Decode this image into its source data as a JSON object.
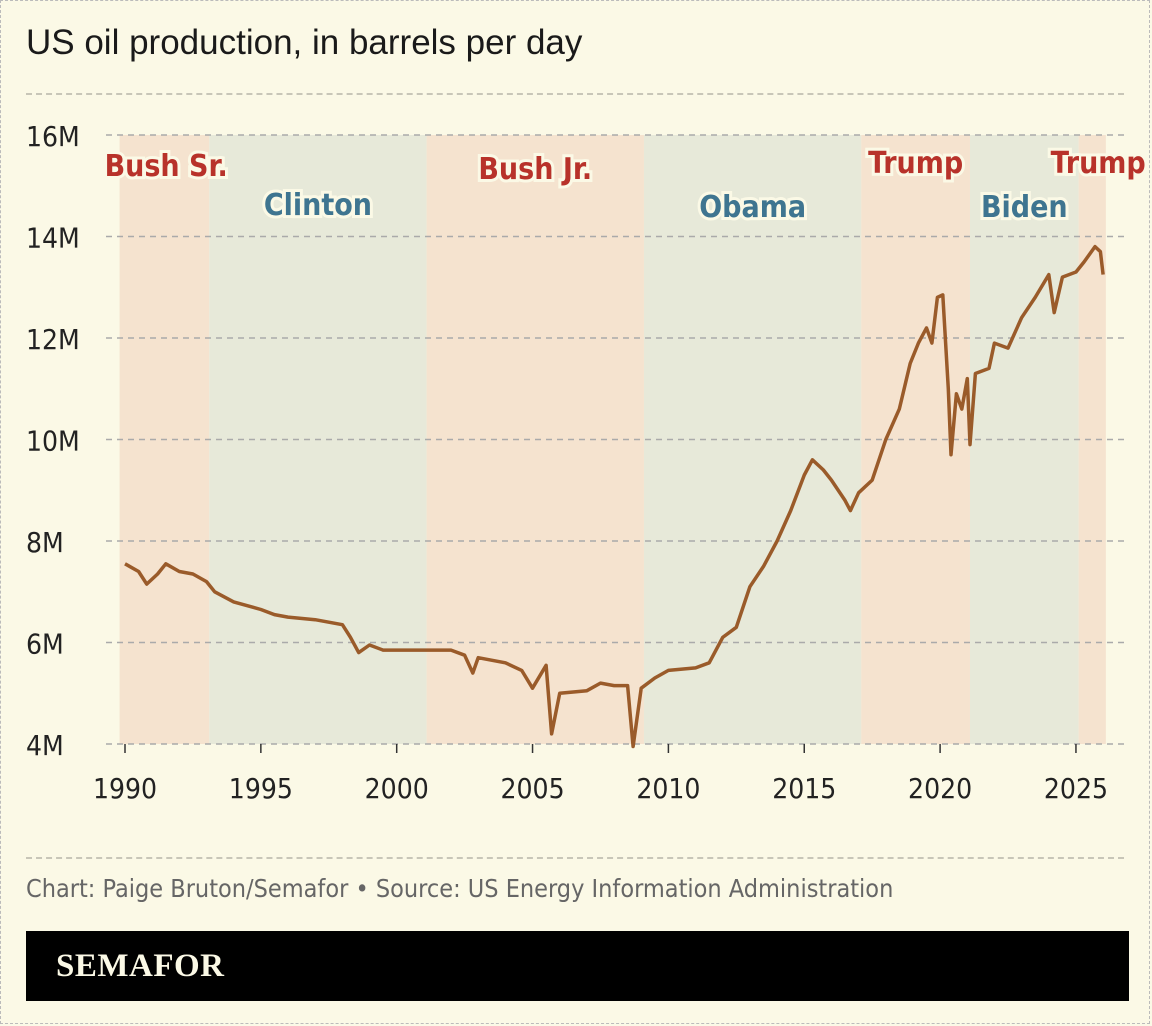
{
  "title": "US oil production, in barrels per day",
  "footer": "Chart: Paige Bruton/Semafor • Source: US Energy Information Administration",
  "logo": "SEMAFOR",
  "chart_data": {
    "type": "line",
    "title": "US oil production, in barrels per day",
    "xlabel": "",
    "ylabel": "",
    "xlim": [
      1990,
      2026
    ],
    "ylim": [
      4,
      16
    ],
    "x_ticks": [
      "1990",
      "1995",
      "2000",
      "2005",
      "2010",
      "2015",
      "2020",
      "2025"
    ],
    "y_ticks": [
      "4M",
      "6M",
      "8M",
      "10M",
      "12M",
      "14M",
      "16M"
    ],
    "grid": "horizontal dashed",
    "line_color": "#9a5b2a",
    "presidencies": [
      {
        "name": "Bush Sr.",
        "start": 1989.8,
        "end": 1993.1,
        "party": "R"
      },
      {
        "name": "Clinton",
        "start": 1993.1,
        "end": 2001.1,
        "party": "D"
      },
      {
        "name": "Bush Jr.",
        "start": 2001.1,
        "end": 2009.1,
        "party": "R"
      },
      {
        "name": "Obama",
        "start": 2009.1,
        "end": 2017.1,
        "party": "D"
      },
      {
        "name": "Trump",
        "start": 2017.1,
        "end": 2021.1,
        "party": "R"
      },
      {
        "name": "Biden",
        "start": 2021.1,
        "end": 2025.1,
        "party": "D"
      },
      {
        "name": "Trump",
        "start": 2025.1,
        "end": 2026.1,
        "party": "R"
      }
    ],
    "colors": {
      "R_band": "#f5e3cf",
      "D_band": "#e7e9d9",
      "R_text": "#b8322a",
      "D_text": "#3f7590"
    },
    "units": "million barrels per day",
    "x": [
      1990,
      1990.5,
      1990.8,
      1991.2,
      1991.5,
      1992,
      1992.5,
      1993,
      1993.3,
      1994,
      1995,
      1995.5,
      1996,
      1997,
      1998,
      1998.3,
      1998.6,
      1999,
      1999.5,
      2000,
      2000.5,
      2001,
      2002,
      2002.5,
      2002.8,
      2003,
      2004,
      2004.6,
      2005,
      2005.5,
      2005.7,
      2006,
      2007,
      2007.5,
      2008,
      2008.5,
      2008.7,
      2009,
      2009.5,
      2010,
      2011,
      2011.5,
      2012,
      2012.5,
      2013,
      2013.5,
      2014,
      2014.5,
      2015,
      2015.3,
      2015.7,
      2016,
      2016.5,
      2016.7,
      2017,
      2017.5,
      2018,
      2018.5,
      2018.9,
      2019.2,
      2019.5,
      2019.7,
      2019.9,
      2020.1,
      2020.3,
      2020.4,
      2020.6,
      2020.8,
      2021,
      2021.1,
      2021.3,
      2021.8,
      2022,
      2022.5,
      2023,
      2023.5,
      2024,
      2024.2,
      2024.5,
      2025,
      2025.3,
      2025.7,
      2025.9,
      2026
    ],
    "y": [
      7.55,
      7.4,
      7.15,
      7.35,
      7.55,
      7.4,
      7.35,
      7.2,
      7.0,
      6.8,
      6.65,
      6.55,
      6.5,
      6.45,
      6.35,
      6.1,
      5.8,
      5.95,
      5.85,
      5.85,
      5.85,
      5.85,
      5.85,
      5.75,
      5.4,
      5.7,
      5.6,
      5.45,
      5.1,
      5.55,
      4.2,
      5.0,
      5.05,
      5.2,
      5.15,
      5.15,
      3.95,
      5.1,
      5.3,
      5.45,
      5.5,
      5.6,
      6.1,
      6.3,
      7.1,
      7.5,
      8.0,
      8.6,
      9.3,
      9.6,
      9.4,
      9.2,
      8.8,
      8.6,
      8.95,
      9.2,
      10.0,
      10.6,
      11.5,
      11.9,
      12.2,
      11.9,
      12.8,
      12.85,
      11.0,
      9.7,
      10.9,
      10.6,
      11.2,
      9.9,
      11.3,
      11.4,
      11.9,
      11.8,
      12.4,
      12.8,
      13.25,
      12.5,
      13.2,
      13.3,
      13.5,
      13.8,
      13.7,
      13.25
    ]
  }
}
